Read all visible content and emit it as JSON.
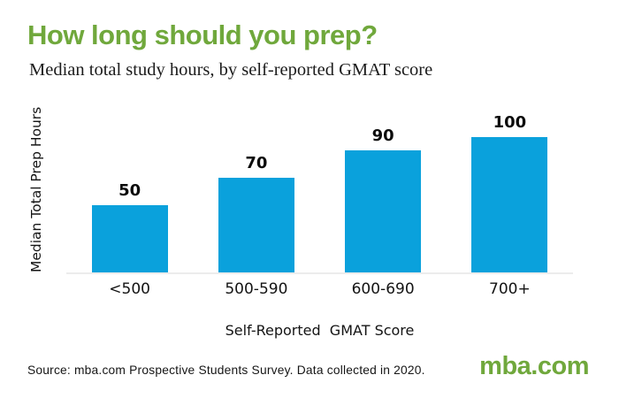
{
  "header": {
    "title": "How long should you prep?",
    "subtitle": "Median total study hours, by self-reported GMAT score"
  },
  "footer": {
    "source": "Source: mba.com Prospective Students Survey. Data collected in 2020.",
    "logo": "mba.com"
  },
  "colors": {
    "brand_green": "#70A83C",
    "bar_blue": "#0AA1DC",
    "baseline_gray": "#ECECEC",
    "text": "#111111"
  },
  "chart_data": {
    "type": "bar",
    "title": "How long should you prep?",
    "subtitle": "Median total study hours, by self-reported GMAT score",
    "categories": [
      "<500",
      "500-590",
      "600-690",
      "700+"
    ],
    "values": [
      50,
      70,
      90,
      100
    ],
    "data_labels": [
      "50",
      "70",
      "90",
      "100"
    ],
    "xlabel": "Self-Reported  GMAT Score",
    "ylabel": "Median Total Prep Hours",
    "ylim": [
      0,
      110
    ],
    "grid": false,
    "legend": false,
    "bar_color": "#0AA1DC"
  }
}
